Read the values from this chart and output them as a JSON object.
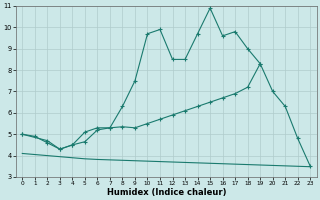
{
  "xlabel": "Humidex (Indice chaleur)",
  "x_values": [
    0,
    1,
    2,
    3,
    4,
    5,
    6,
    7,
    8,
    9,
    10,
    11,
    12,
    13,
    14,
    15,
    16,
    17,
    18,
    19,
    20,
    21,
    22,
    23
  ],
  "line_top": [
    5.0,
    4.9,
    4.6,
    4.3,
    4.5,
    5.1,
    5.3,
    5.3,
    6.3,
    7.5,
    9.7,
    9.9,
    8.5,
    8.5,
    9.7,
    10.9,
    9.6,
    9.8,
    9.0,
    8.3,
    7.0,
    6.3,
    4.8,
    3.5
  ],
  "line_mid": [
    5.0,
    null,
    4.7,
    4.3,
    4.5,
    4.65,
    5.2,
    5.3,
    5.35,
    5.3,
    5.5,
    5.7,
    5.9,
    6.1,
    6.3,
    6.5,
    6.7,
    6.9,
    7.2,
    8.3,
    null,
    null,
    null,
    null
  ],
  "line_bot": [
    4.1,
    4.05,
    4.0,
    3.95,
    3.9,
    3.85,
    3.82,
    3.8,
    3.78,
    3.76,
    3.74,
    3.72,
    3.7,
    3.68,
    3.66,
    3.64,
    3.62,
    3.6,
    3.58,
    3.56,
    3.54,
    3.52,
    3.5,
    3.48
  ],
  "ylim": [
    3,
    11
  ],
  "xlim": [
    -0.5,
    23.5
  ],
  "yticks": [
    3,
    4,
    5,
    6,
    7,
    8,
    9,
    10,
    11
  ],
  "xticks": [
    0,
    1,
    2,
    3,
    4,
    5,
    6,
    7,
    8,
    9,
    10,
    11,
    12,
    13,
    14,
    15,
    16,
    17,
    18,
    19,
    20,
    21,
    22,
    23
  ],
  "line_color": "#1a7a6e",
  "bg_color": "#cce8e8",
  "grid_color": "#b0cccc",
  "marker": "+"
}
